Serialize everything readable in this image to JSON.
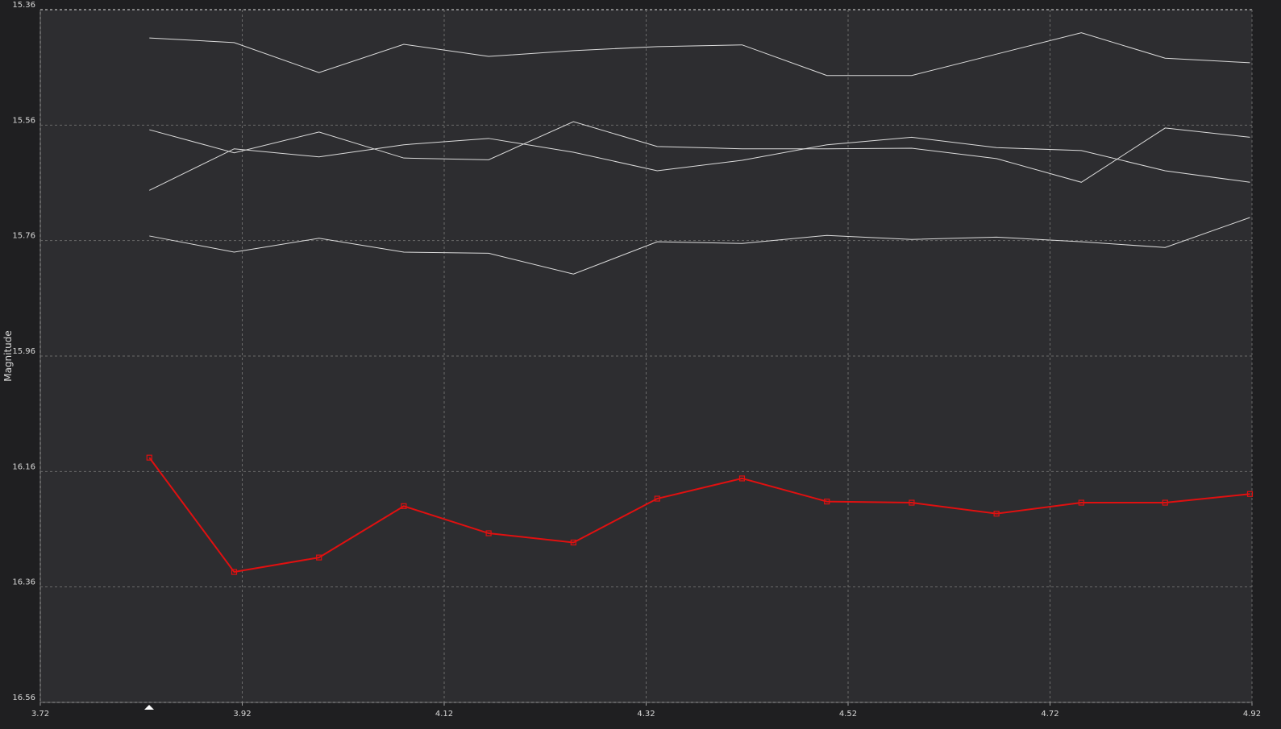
{
  "chart_data": {
    "type": "line",
    "ylabel": "Magnitude",
    "x": [
      3.828,
      3.912,
      3.996,
      4.08,
      4.164,
      4.248,
      4.331,
      4.415,
      4.499,
      4.583,
      4.667,
      4.751,
      4.834,
      4.918
    ],
    "xlim": [
      3.72,
      4.92
    ],
    "xticks": [
      3.72,
      3.92,
      4.12,
      4.32,
      4.52,
      4.72,
      4.92
    ],
    "ylim": [
      15.36,
      16.56
    ],
    "yticks": [
      15.36,
      15.56,
      15.76,
      15.96,
      16.16,
      16.36,
      16.56
    ],
    "y_inverted": true,
    "grid": true,
    "series": [
      {
        "color": "#dcdcdc",
        "marker": "none",
        "values": [
          15.409,
          15.417,
          15.469,
          15.42,
          15.441,
          15.431,
          15.424,
          15.421,
          15.474,
          15.474,
          15.437,
          15.4,
          15.444,
          15.452
        ]
      },
      {
        "color": "#dcdcdc",
        "marker": "none",
        "values": [
          15.568,
          15.608,
          15.572,
          15.617,
          15.62,
          15.554,
          15.597,
          15.601,
          15.601,
          15.6,
          15.618,
          15.659,
          15.565,
          15.581
        ]
      },
      {
        "color": "#dcdcdc",
        "marker": "none",
        "values": [
          15.673,
          15.601,
          15.615,
          15.594,
          15.583,
          15.607,
          15.639,
          15.621,
          15.594,
          15.581,
          15.599,
          15.604,
          15.639,
          15.659
        ]
      },
      {
        "color": "#dcdcdc",
        "marker": "none",
        "values": [
          15.752,
          15.78,
          15.756,
          15.78,
          15.782,
          15.818,
          15.762,
          15.765,
          15.751,
          15.758,
          15.754,
          15.762,
          15.772,
          15.72
        ]
      },
      {
        "color": "#e01010",
        "marker": "square",
        "values": [
          16.136,
          16.334,
          16.309,
          16.22,
          16.267,
          16.283,
          16.207,
          16.172,
          16.212,
          16.214,
          16.233,
          16.214,
          16.214,
          16.199
        ]
      }
    ]
  }
}
